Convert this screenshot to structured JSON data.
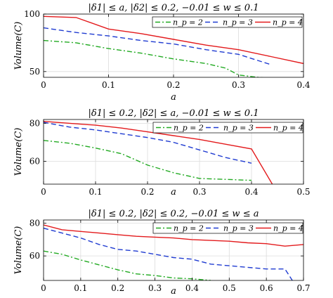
{
  "chart_data": [
    {
      "type": "line",
      "title": "|δ1| ≤ a, |δ2| ≤ 0.2, −0.01 ≤ w ≤ 0.1",
      "xlabel": "a",
      "ylabel": "Volume(C)",
      "xlim": [
        0,
        0.4
      ],
      "ylim": [
        45,
        100
      ],
      "xticks": [
        0,
        0.1,
        0.2,
        0.3,
        0.4
      ],
      "xtick_labels": [
        "0",
        "0.1",
        "0.2",
        "0.3",
        "0.4"
      ],
      "yticks": [
        50,
        100
      ],
      "ytick_labels": [
        "50",
        "100"
      ],
      "grid": true,
      "legend_position": "top-right",
      "series": [
        {
          "name": "n_p = 2",
          "color": "#22aa22",
          "dash": "dashdot",
          "x": [
            0,
            0.05,
            0.1,
            0.15,
            0.2,
            0.25,
            0.28,
            0.3,
            0.33,
            0.35
          ],
          "y": [
            77,
            75,
            70,
            66,
            61,
            57,
            53,
            47,
            45,
            44
          ]
        },
        {
          "name": "n_p = 3",
          "color": "#1f3bd1",
          "dash": "dashed",
          "x": [
            0,
            0.05,
            0.1,
            0.15,
            0.2,
            0.25,
            0.3,
            0.35
          ],
          "y": [
            88,
            84,
            81,
            77,
            74,
            69,
            65,
            56
          ]
        },
        {
          "name": "n_p = 4",
          "color": "#e31a1c",
          "dash": "solid",
          "x": [
            0,
            0.05,
            0.1,
            0.15,
            0.2,
            0.25,
            0.3,
            0.35,
            0.4
          ],
          "y": [
            98,
            97,
            87,
            83,
            78,
            73,
            69,
            63,
            57
          ]
        }
      ]
    },
    {
      "type": "line",
      "title": "|δ1| ≤ 0.2, |δ2| ≤ a, −0.01 ≤ w ≤ 0.1",
      "xlabel": "a",
      "ylabel": "Volume(C)",
      "xlim": [
        0,
        0.5
      ],
      "ylim": [
        48,
        82
      ],
      "xticks": [
        0,
        0.1,
        0.2,
        0.3,
        0.4,
        0.5
      ],
      "xtick_labels": [
        "0",
        "0.1",
        "0.2",
        "0.3",
        "0.4",
        "0.5"
      ],
      "yticks": [
        60,
        80
      ],
      "ytick_labels": [
        "60",
        "80"
      ],
      "grid": true,
      "legend_position": "top-right",
      "series": [
        {
          "name": "n_p = 2",
          "color": "#22aa22",
          "dash": "dashdot",
          "x": [
            0,
            0.05,
            0.1,
            0.15,
            0.2,
            0.25,
            0.3,
            0.35,
            0.4
          ],
          "y": [
            71,
            69.5,
            67,
            64,
            58,
            54,
            51,
            50.5,
            50
          ]
        },
        {
          "name": "n_p = 3",
          "color": "#1f3bd1",
          "dash": "dashed",
          "x": [
            0,
            0.05,
            0.1,
            0.15,
            0.2,
            0.25,
            0.3,
            0.35,
            0.4
          ],
          "y": [
            80.5,
            78,
            76.5,
            74.5,
            72.5,
            70,
            66,
            62,
            59
          ]
        },
        {
          "name": "n_p = 4",
          "color": "#e31a1c",
          "dash": "solid",
          "x": [
            0,
            0.05,
            0.1,
            0.15,
            0.2,
            0.25,
            0.3,
            0.35,
            0.4,
            0.44
          ],
          "y": [
            81,
            80,
            79,
            77.5,
            75.5,
            73.5,
            71.5,
            69,
            66.5,
            48
          ]
        }
      ]
    },
    {
      "type": "line",
      "title": "|δ1| ≤ 0.2, |δ2| ≤ 0.2, −0.01 ≤ w ≤ a",
      "xlabel": "a",
      "ylabel": "Volume(C)",
      "xlim": [
        0,
        0.7
      ],
      "ylim": [
        45,
        82
      ],
      "xticks": [
        0,
        0.1,
        0.2,
        0.3,
        0.4,
        0.5,
        0.6,
        0.7
      ],
      "xtick_labels": [
        "0",
        "0.1",
        "0.2",
        "0.3",
        "0.4",
        "0.5",
        "0.6",
        "0.7"
      ],
      "yticks": [
        60,
        80
      ],
      "ytick_labels": [
        "60",
        "80"
      ],
      "grid": true,
      "legend_position": "top-right",
      "series": [
        {
          "name": "n_p = 2",
          "color": "#22aa22",
          "dash": "dashdot",
          "x": [
            0,
            0.05,
            0.1,
            0.15,
            0.2,
            0.25,
            0.3,
            0.35,
            0.4,
            0.45
          ],
          "y": [
            63,
            61,
            57.5,
            54.5,
            51.5,
            49,
            48,
            46.5,
            46,
            45
          ]
        },
        {
          "name": "n_p = 3",
          "color": "#1f3bd1",
          "dash": "dashed",
          "x": [
            0,
            0.05,
            0.1,
            0.15,
            0.2,
            0.25,
            0.3,
            0.35,
            0.4,
            0.45,
            0.5,
            0.55,
            0.6,
            0.65,
            0.67
          ],
          "y": [
            77,
            74,
            71,
            67,
            64,
            63,
            61,
            59,
            58,
            55,
            54,
            53,
            52,
            52,
            45
          ]
        },
        {
          "name": "n_p = 4",
          "color": "#e31a1c",
          "dash": "solid",
          "x": [
            0,
            0.05,
            0.1,
            0.15,
            0.2,
            0.25,
            0.3,
            0.35,
            0.4,
            0.45,
            0.5,
            0.55,
            0.6,
            0.65,
            0.7
          ],
          "y": [
            79,
            76,
            75,
            74,
            73,
            72,
            71.5,
            71,
            70,
            69.5,
            69,
            68,
            67.5,
            66,
            67
          ]
        }
      ]
    }
  ]
}
